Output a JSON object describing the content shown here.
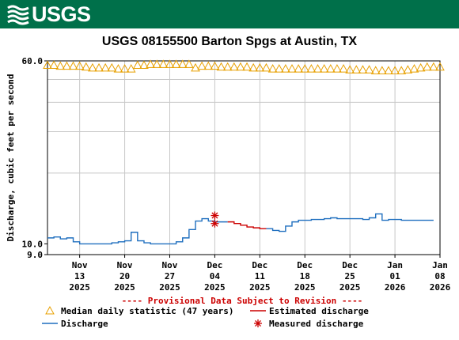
{
  "header": {
    "agency": "USGS",
    "colors": {
      "bar": "#00704a",
      "logo": "#ffffff"
    },
    "logo_icon": "usgs-wave-icon"
  },
  "chart_data": {
    "type": "line",
    "title": "USGS 08155500 Barton Spgs at Austin, TX",
    "ylabel": "Discharge, cubic feet per second",
    "xlabel": "",
    "scale": "log",
    "ylim": [
      9.0,
      60.0
    ],
    "y_ticks": [
      {
        "value": 60.0,
        "label": "60.0"
      },
      {
        "value": 10.0,
        "label": "10.0"
      },
      {
        "value": 9.0,
        "label": "9.0"
      }
    ],
    "y_gridlines": [
      20,
      30,
      40,
      50
    ],
    "xlim": [
      "2025-11-08",
      "2026-01-08"
    ],
    "x_ticks": [
      {
        "date": "2025-11-13",
        "label": [
          "Nov",
          "13",
          "2025"
        ]
      },
      {
        "date": "2025-11-20",
        "label": [
          "Nov",
          "20",
          "2025"
        ]
      },
      {
        "date": "2025-11-27",
        "label": [
          "Nov",
          "27",
          "2025"
        ]
      },
      {
        "date": "2025-12-04",
        "label": [
          "Dec",
          "04",
          "2025"
        ]
      },
      {
        "date": "2025-12-11",
        "label": [
          "Dec",
          "11",
          "2025"
        ]
      },
      {
        "date": "2025-12-18",
        "label": [
          "Dec",
          "18",
          "2025"
        ]
      },
      {
        "date": "2025-12-25",
        "label": [
          "Dec",
          "25",
          "2025"
        ]
      },
      {
        "date": "2026-01-01",
        "label": [
          "Jan",
          "01",
          "2026"
        ]
      },
      {
        "date": "2026-01-08",
        "label": [
          "Jan",
          "08",
          "2026"
        ]
      }
    ],
    "grid": true,
    "provisional_note": "---- Provisional Data Subject to Revision ----",
    "series": [
      {
        "name": "Median daily statistic (47 years)",
        "style": "triangle-markers",
        "color": "#e8a000",
        "x": [
          "2025-11-08",
          "2025-11-09",
          "2025-11-10",
          "2025-11-11",
          "2025-11-12",
          "2025-11-13",
          "2025-11-14",
          "2025-11-15",
          "2025-11-16",
          "2025-11-17",
          "2025-11-18",
          "2025-11-19",
          "2025-11-20",
          "2025-11-21",
          "2025-11-22",
          "2025-11-23",
          "2025-11-24",
          "2025-11-25",
          "2025-11-26",
          "2025-11-27",
          "2025-11-28",
          "2025-11-29",
          "2025-11-30",
          "2025-12-01",
          "2025-12-02",
          "2025-12-03",
          "2025-12-04",
          "2025-12-05",
          "2025-12-06",
          "2025-12-07",
          "2025-12-08",
          "2025-12-09",
          "2025-12-10",
          "2025-12-11",
          "2025-12-12",
          "2025-12-13",
          "2025-12-14",
          "2025-12-15",
          "2025-12-16",
          "2025-12-17",
          "2025-12-18",
          "2025-12-19",
          "2025-12-20",
          "2025-12-21",
          "2025-12-22",
          "2025-12-23",
          "2025-12-24",
          "2025-12-25",
          "2025-12-26",
          "2025-12-27",
          "2025-12-28",
          "2025-12-29",
          "2025-12-30",
          "2025-12-31",
          "2026-01-01",
          "2026-01-02",
          "2026-01-03",
          "2026-01-04",
          "2026-01-05",
          "2026-01-06",
          "2026-01-07",
          "2026-01-08"
        ],
        "values": [
          57.5,
          57.5,
          57.0,
          57.0,
          57.0,
          57.0,
          56.5,
          56.0,
          56.0,
          56.0,
          56.0,
          55.5,
          55.5,
          55.5,
          57.5,
          57.5,
          58.0,
          58.0,
          58.0,
          58.0,
          58.0,
          58.0,
          58.0,
          56.0,
          57.0,
          57.0,
          57.0,
          56.5,
          56.5,
          56.5,
          56.5,
          56.5,
          56.0,
          56.0,
          56.0,
          55.5,
          55.5,
          55.5,
          55.5,
          55.5,
          55.5,
          55.5,
          55.5,
          55.5,
          55.5,
          55.5,
          55.5,
          55.0,
          55.0,
          55.0,
          55.0,
          54.5,
          54.5,
          54.5,
          54.5,
          54.5,
          55.0,
          55.5,
          56.0,
          56.5,
          56.5,
          56.5
        ]
      },
      {
        "name": "Discharge",
        "style": "line",
        "color": "#1f6fbf",
        "x": [
          "2025-11-08",
          "2025-11-09",
          "2025-11-10",
          "2025-11-11",
          "2025-11-12",
          "2025-11-13",
          "2025-11-14",
          "2025-11-15",
          "2025-11-16",
          "2025-11-17",
          "2025-11-18",
          "2025-11-19",
          "2025-11-20",
          "2025-11-21",
          "2025-11-22",
          "2025-11-23",
          "2025-11-24",
          "2025-11-25",
          "2025-11-26",
          "2025-11-27",
          "2025-11-28",
          "2025-11-29",
          "2025-11-30",
          "2025-12-01",
          "2025-12-02",
          "2025-12-03",
          "2025-12-04",
          "2025-12-05",
          "2025-12-06"
        ],
        "values": [
          10.6,
          10.7,
          10.5,
          10.6,
          10.2,
          10.0,
          10.0,
          10.0,
          10.0,
          10.0,
          10.1,
          10.2,
          10.3,
          11.2,
          10.3,
          10.1,
          10.0,
          10.0,
          10.0,
          10.0,
          10.2,
          10.6,
          11.5,
          12.5,
          12.8,
          12.5,
          12.4,
          12.4,
          12.4
        ]
      },
      {
        "name": "Estimated discharge",
        "style": "line",
        "color": "#cc0000",
        "x": [
          "2025-12-06",
          "2025-12-07",
          "2025-12-08",
          "2025-12-09",
          "2025-12-10",
          "2025-12-11",
          "2025-12-12"
        ],
        "values": [
          12.4,
          12.2,
          12.0,
          11.8,
          11.7,
          11.6,
          11.6
        ]
      },
      {
        "name": "Discharge",
        "style": "line",
        "color": "#1f6fbf",
        "x": [
          "2025-12-12",
          "2025-12-13",
          "2025-12-14",
          "2025-12-15",
          "2025-12-16",
          "2025-12-17",
          "2025-12-18",
          "2025-12-19",
          "2025-12-20",
          "2025-12-21",
          "2025-12-22",
          "2025-12-23",
          "2025-12-24",
          "2025-12-25",
          "2025-12-26",
          "2025-12-27",
          "2025-12-28",
          "2025-12-29",
          "2025-12-30",
          "2025-12-31",
          "2026-01-01",
          "2026-01-02",
          "2026-01-03",
          "2026-01-04",
          "2026-01-05",
          "2026-01-06",
          "2026-01-07"
        ],
        "values": [
          11.6,
          11.4,
          11.3,
          11.9,
          12.4,
          12.6,
          12.6,
          12.7,
          12.7,
          12.8,
          12.9,
          12.8,
          12.8,
          12.8,
          12.8,
          12.7,
          12.9,
          13.4,
          12.6,
          12.7,
          12.7,
          12.6,
          12.6,
          12.6,
          12.6,
          12.6,
          12.6
        ]
      },
      {
        "name": "Measured discharge",
        "style": "asterisk-markers",
        "color": "#cc0000",
        "x": [
          "2025-12-04",
          "2025-12-04"
        ],
        "values": [
          13.2,
          12.2
        ]
      }
    ],
    "legend": {
      "placement": "bottom",
      "entries": [
        {
          "name": "Median daily statistic (47 years)",
          "symbol": "triangle",
          "color": "#e8a000"
        },
        {
          "name": "Estimated discharge",
          "symbol": "line",
          "color": "#cc0000"
        },
        {
          "name": "Discharge",
          "symbol": "line",
          "color": "#1f6fbf"
        },
        {
          "name": "Measured discharge",
          "symbol": "asterisk",
          "color": "#cc0000"
        }
      ]
    }
  }
}
